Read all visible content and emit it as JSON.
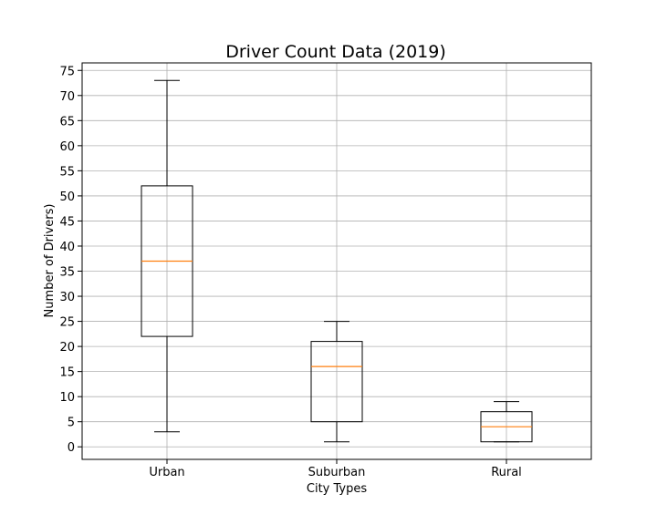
{
  "chart_data": {
    "type": "box",
    "title": "Driver Count Data (2019)",
    "xlabel": "City Types",
    "ylabel": "Number of Drivers)",
    "ylim": [
      -2.5,
      76.5
    ],
    "yticks": [
      0,
      5,
      10,
      15,
      20,
      25,
      30,
      35,
      40,
      45,
      50,
      55,
      60,
      65,
      70,
      75
    ],
    "grid": true,
    "categories": [
      "Urban",
      "Suburban",
      "Rural"
    ],
    "boxes": [
      {
        "category": "Urban",
        "whisker_low": 3,
        "q1": 22,
        "median": 37,
        "q3": 52,
        "whisker_high": 73
      },
      {
        "category": "Suburban",
        "whisker_low": 1,
        "q1": 5,
        "median": 16,
        "q3": 21,
        "whisker_high": 25
      },
      {
        "category": "Rural",
        "whisker_low": 1,
        "q1": 1,
        "median": 4,
        "q3": 7,
        "whisker_high": 9
      }
    ],
    "colors": {
      "box": "#000000",
      "median": "#ff7f0e",
      "grid": "#b0b0b0"
    }
  }
}
